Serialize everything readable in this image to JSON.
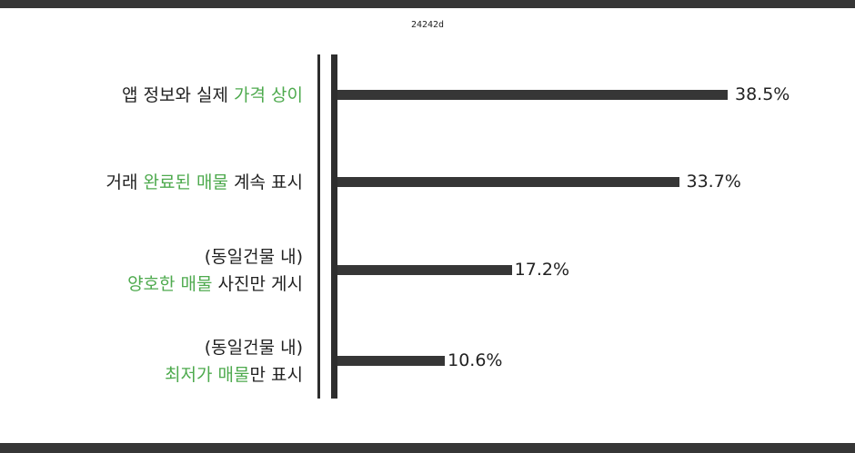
{
  "header": {
    "code": "24242d"
  },
  "chart_data": {
    "type": "bar",
    "orientation": "horizontal",
    "categories": [
      [
        {
          "text": "앱 정보와 실제 ",
          "highlight": false
        },
        {
          "text": "가격 상이",
          "highlight": true
        }
      ],
      [
        {
          "text": "거래 ",
          "highlight": false
        },
        {
          "text": "완료된 매물",
          "highlight": true
        },
        {
          "text": " 계속 표시",
          "highlight": false
        }
      ],
      [
        {
          "text": "(동일건물 내)",
          "highlight": false
        },
        {
          "text": "\n",
          "highlight": false
        },
        {
          "text": "양호한 매물",
          "highlight": true
        },
        {
          "text": " 사진만 게시",
          "highlight": false
        }
      ],
      [
        {
          "text": "(동일건물 내)",
          "highlight": false
        },
        {
          "text": "\n",
          "highlight": false
        },
        {
          "text": "최저가 매물",
          "highlight": true
        },
        {
          "text": "만 표시",
          "highlight": false
        }
      ]
    ],
    "values": [
      38.5,
      33.7,
      17.2,
      10.6
    ],
    "value_labels": [
      "38.5%",
      "33.7%",
      "17.2%",
      "10.6%"
    ],
    "xlim": [
      0,
      40
    ],
    "grid": false,
    "colors": {
      "bar": "#363636",
      "highlight": "#4eaa4e",
      "text": "#222222"
    }
  }
}
